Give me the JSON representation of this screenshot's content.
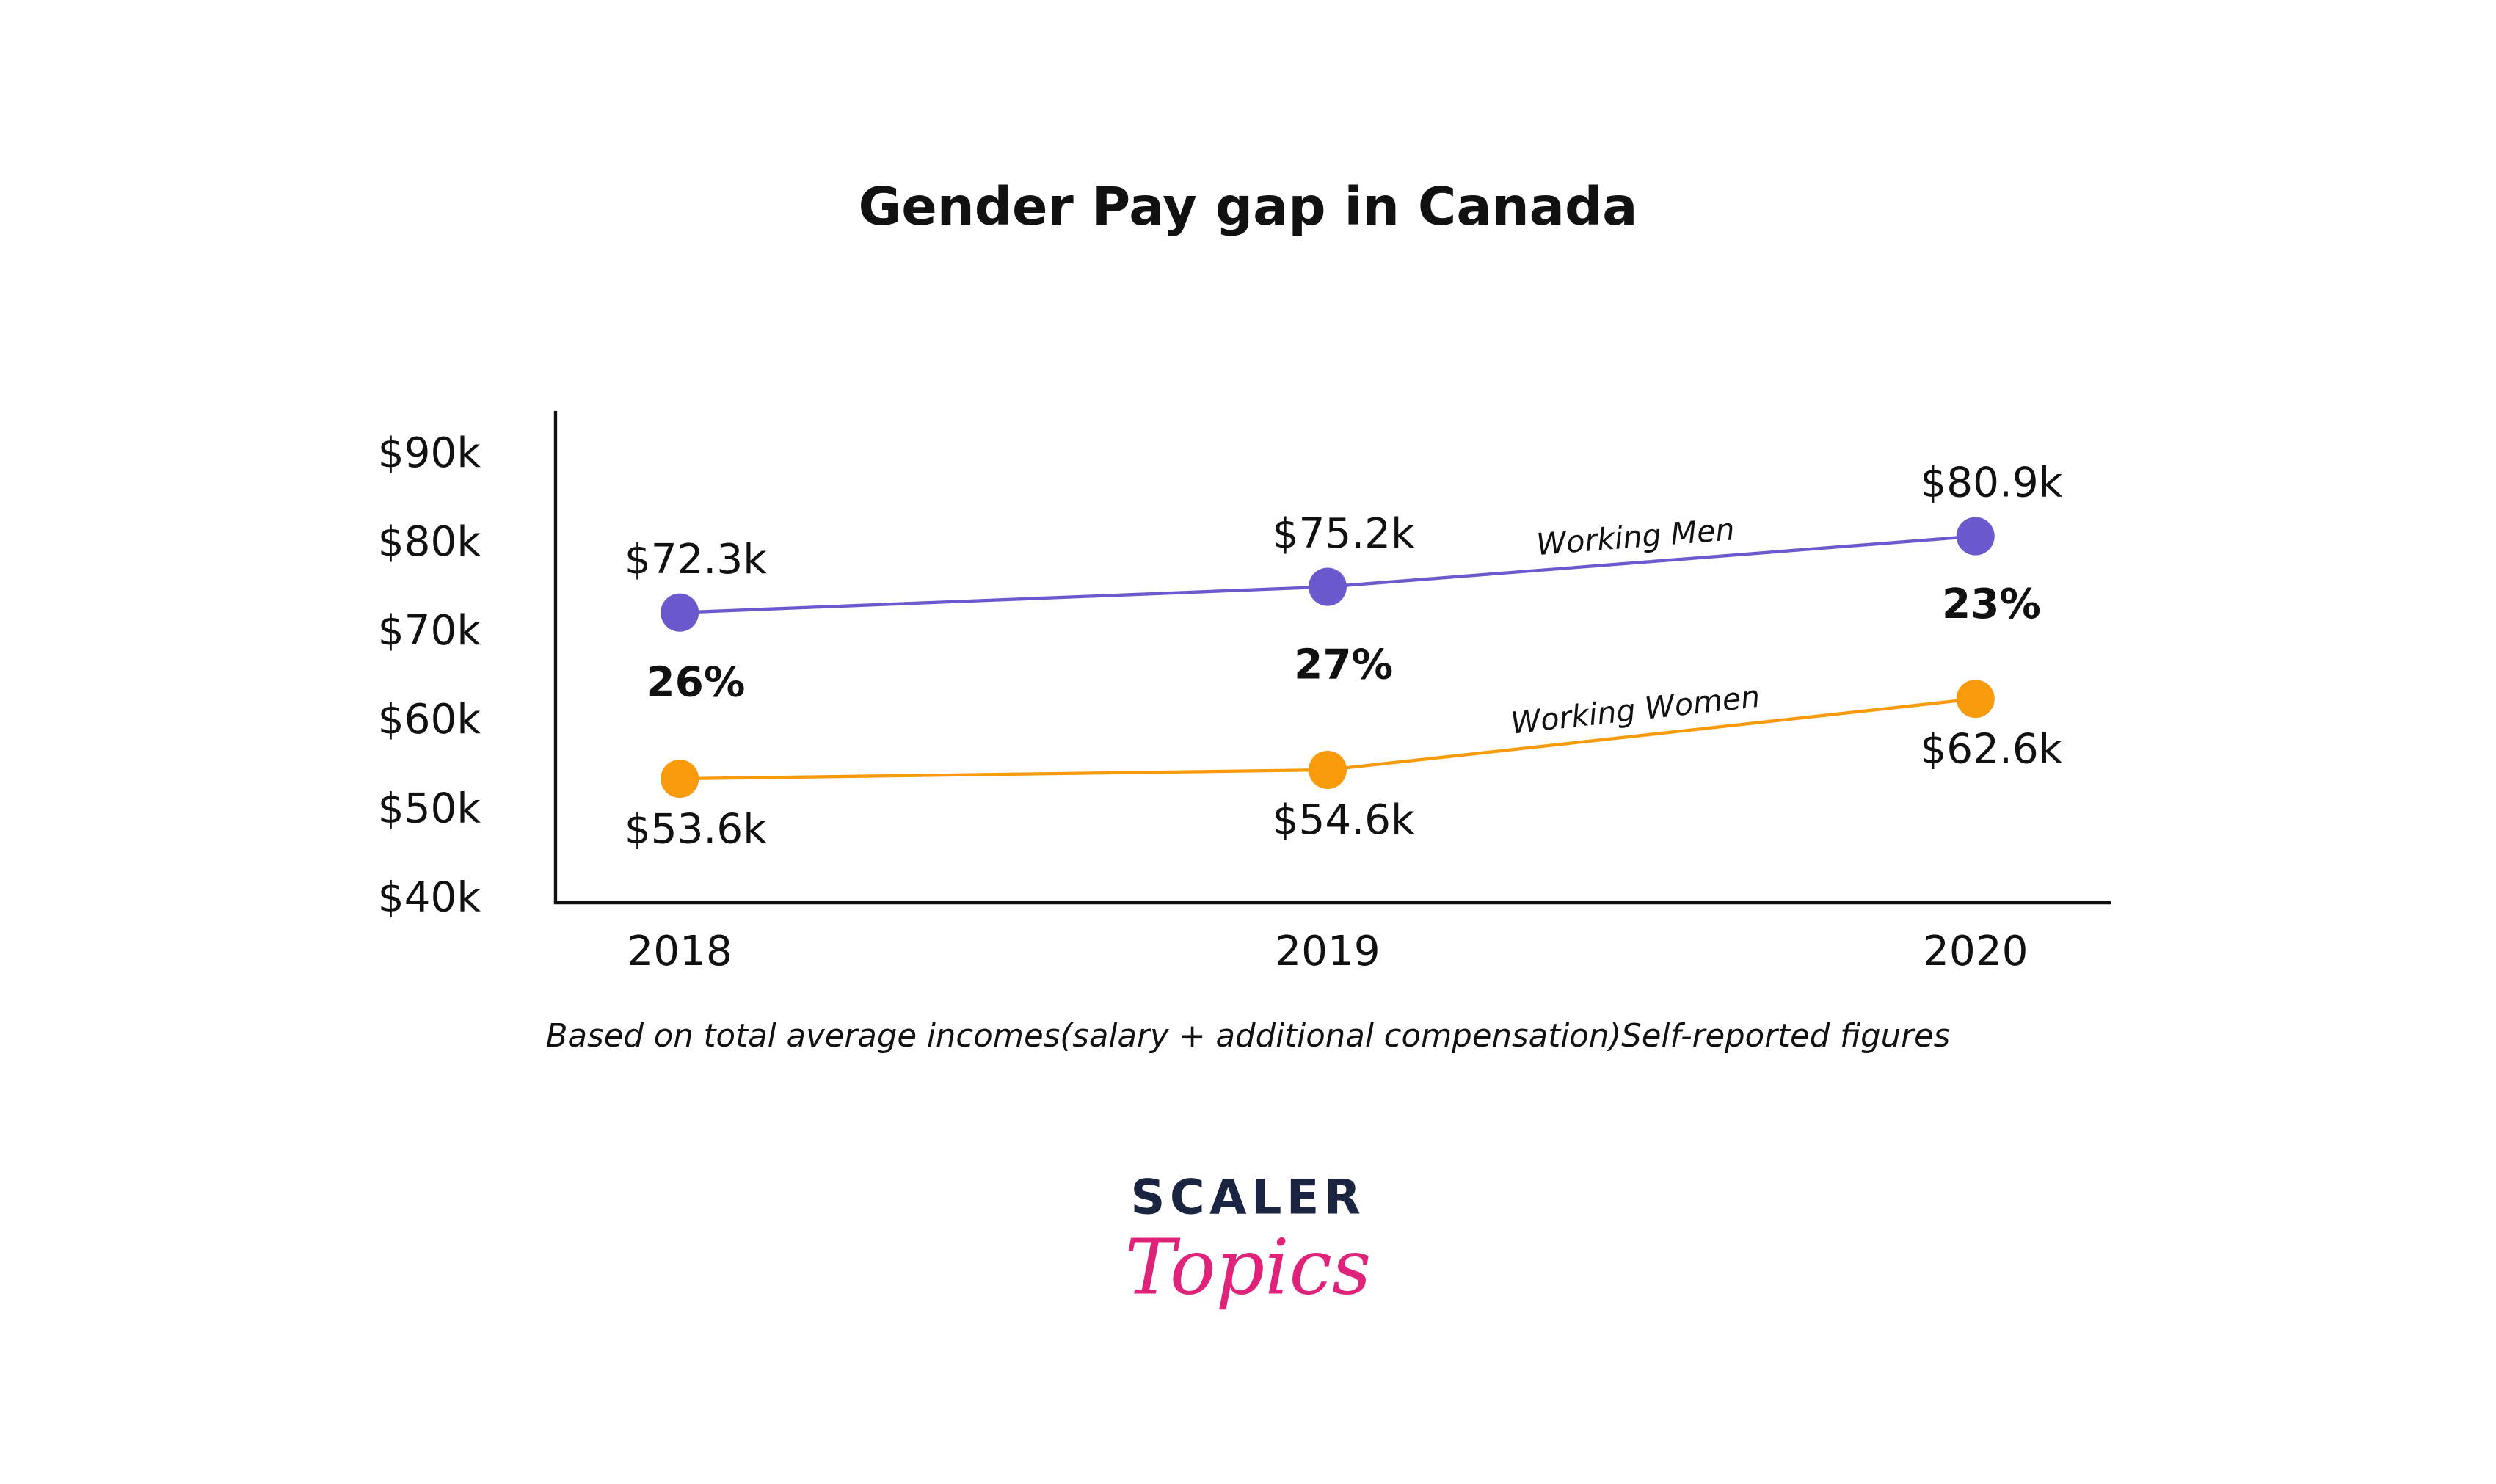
{
  "chart_data": {
    "type": "line",
    "title": "Gender Pay gap in Canada",
    "categories": [
      "2018",
      "2019",
      "2020"
    ],
    "series": [
      {
        "name": "Working Men",
        "color": "#6a5acd",
        "values": [
          72.3,
          75.2,
          80.9
        ],
        "value_labels": [
          "$72.3k",
          "$75.2k",
          "$80.9k"
        ]
      },
      {
        "name": "Working Women",
        "color": "#f79a0c",
        "values": [
          53.6,
          54.6,
          62.6
        ],
        "value_labels": [
          "$53.6k",
          "$54.6k",
          "$62.6k"
        ]
      }
    ],
    "gaps": {
      "values": [
        26,
        27,
        23
      ],
      "value_labels": [
        "26%",
        "27%",
        "23%"
      ]
    },
    "ylim": [
      40,
      95
    ],
    "yticks": [
      {
        "value": 40,
        "label": "$40k"
      },
      {
        "value": 50,
        "label": "$50k"
      },
      {
        "value": 60,
        "label": "$60k"
      },
      {
        "value": 70,
        "label": "$70k"
      },
      {
        "value": 80,
        "label": "$80k"
      },
      {
        "value": 90,
        "label": "$90k"
      }
    ],
    "footnote": "Based on total average incomes(salary + additional compensation)Self-reported figures"
  },
  "logo": {
    "top": "SCALER",
    "bottom": "Topics"
  }
}
